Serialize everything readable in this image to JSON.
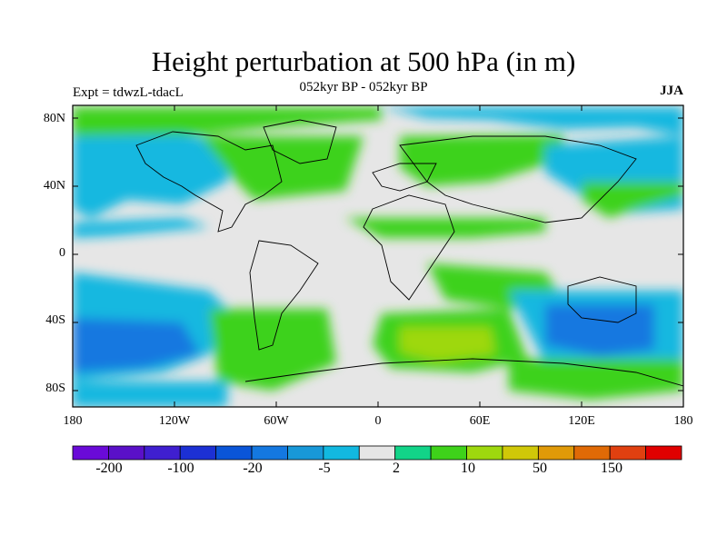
{
  "title": "Height perturbation at 500 hPa (in m)",
  "subtitle": "052kyr BP - 052kyr BP",
  "experiment_label": "Expt = tdwzL-tdacL",
  "season": "JJA",
  "lat_labels": [
    "80N",
    "40N",
    "0",
    "40S",
    "80S"
  ],
  "lon_labels": [
    "180",
    "120W",
    "60W",
    "0",
    "60E",
    "120E",
    "180"
  ],
  "colorbar": {
    "colors": [
      "#6a0ad8",
      "#5a10c8",
      "#3f1fd0",
      "#1c30d4",
      "#0a55d8",
      "#1478e0",
      "#1898d8",
      "#12b8e0",
      "#e6e6e6",
      "#12d488",
      "#3ed21a",
      "#9ed80e",
      "#d0c808",
      "#e09a08",
      "#e06a06",
      "#e04010",
      "#e00000"
    ],
    "labels": [
      "-200",
      "-100",
      "-20",
      "-5",
      "2",
      "10",
      "50",
      "150"
    ]
  }
}
